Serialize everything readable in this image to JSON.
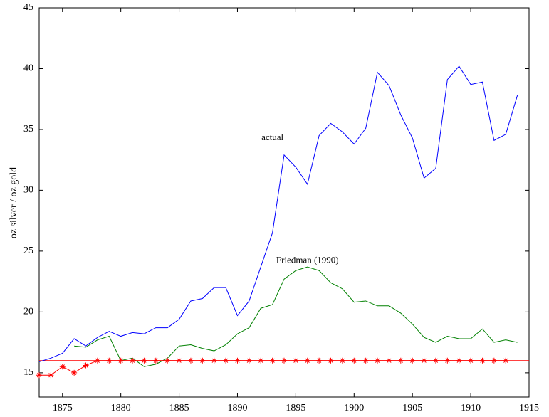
{
  "chart_data": {
    "type": "line",
    "y_label": "oz silver / oz gold",
    "x": [
      1873,
      1874,
      1875,
      1876,
      1877,
      1878,
      1879,
      1880,
      1881,
      1882,
      1883,
      1884,
      1885,
      1886,
      1887,
      1888,
      1889,
      1890,
      1891,
      1892,
      1893,
      1894,
      1895,
      1896,
      1897,
      1898,
      1899,
      1900,
      1901,
      1902,
      1903,
      1904,
      1905,
      1906,
      1907,
      1908,
      1909,
      1910,
      1911,
      1912,
      1913,
      1914
    ],
    "series": [
      {
        "name": "actual",
        "color": "#0000ff",
        "values": [
          15.9,
          16.2,
          16.6,
          17.8,
          17.2,
          17.9,
          18.4,
          18.0,
          18.3,
          18.2,
          18.7,
          18.7,
          19.4,
          20.9,
          21.1,
          22.0,
          22.0,
          19.7,
          20.9,
          23.7,
          26.5,
          32.9,
          31.9,
          30.5,
          34.5,
          35.5,
          34.8,
          33.8,
          35.1,
          39.7,
          38.6,
          36.2,
          34.3,
          31.0,
          31.8,
          39.1,
          40.2,
          38.7,
          38.9,
          34.1,
          34.6,
          37.8
        ]
      },
      {
        "name": "Friedman (1990)",
        "color": "#008000",
        "values": [
          null,
          null,
          null,
          17.2,
          17.1,
          17.7,
          18.0,
          16.0,
          16.2,
          15.5,
          15.7,
          16.2,
          17.2,
          17.3,
          17.0,
          16.8,
          17.3,
          18.2,
          18.7,
          20.3,
          20.6,
          22.7,
          23.4,
          23.7,
          23.4,
          22.4,
          21.9,
          20.8,
          20.9,
          20.5,
          20.5,
          19.9,
          19.0,
          17.9,
          17.5,
          18.0,
          17.8,
          17.8,
          18.6,
          17.5,
          17.7,
          17.5
        ]
      },
      {
        "color": "#ff0000",
        "marker": "*",
        "values": [
          14.8,
          14.8,
          15.5,
          15.0,
          15.6,
          16.0,
          16.0,
          16.0,
          16.0,
          16.0,
          16.0,
          16.0,
          16.0,
          16.0,
          16.0,
          16.0,
          16.0,
          16.0,
          16.0,
          16.0,
          16.0,
          16.0,
          16.0,
          16.0,
          16.0,
          16.0,
          16.0,
          16.0,
          16.0,
          16.0,
          16.0,
          16.0,
          16.0,
          16.0,
          16.0,
          16.0,
          16.0,
          16.0,
          16.0,
          16.0,
          16.0,
          null
        ]
      }
    ],
    "hline": {
      "value": 16,
      "color": "#ff0000"
    },
    "xlim": [
      1873,
      1915
    ],
    "xticks": [
      1875,
      1880,
      1885,
      1890,
      1895,
      1900,
      1905,
      1910,
      1915
    ],
    "ylim": [
      13,
      45
    ],
    "yticks": [
      15,
      20,
      25,
      30,
      35,
      40,
      45
    ],
    "grid": false
  }
}
